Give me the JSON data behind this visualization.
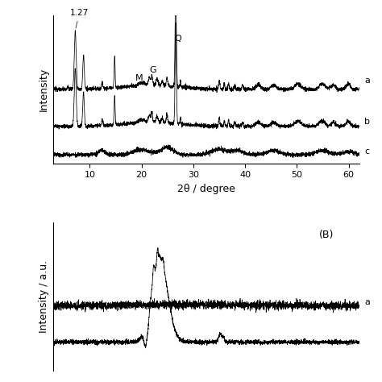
{
  "panel_A": {
    "xlabel": "2θ / degree",
    "ylabel": "Intensity",
    "xlim": [
      3,
      62
    ],
    "xticks": [
      10,
      20,
      30,
      40,
      50,
      60
    ],
    "seed": 12345
  },
  "panel_B": {
    "ylabel": "Intensity / a.u.",
    "label": "(B)",
    "seed": 99999
  },
  "bg_color": "#ffffff",
  "line_color": "#000000"
}
